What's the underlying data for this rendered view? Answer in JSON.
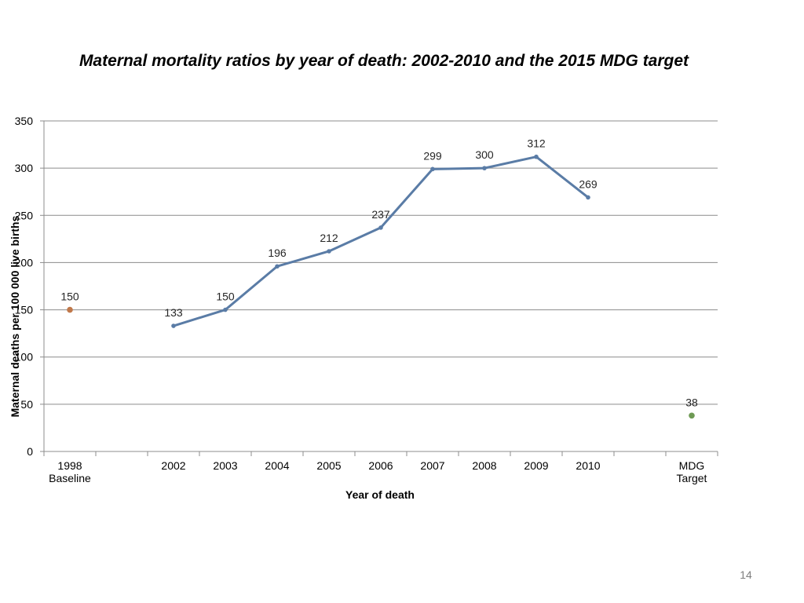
{
  "slide": {
    "title": "Maternal mortality ratios by year of death: 2002-2010 and the 2015 MDG target",
    "page_number": "14"
  },
  "chart_data": {
    "type": "line",
    "title": "",
    "xlabel": "Year of death",
    "ylabel": "Maternal deaths per 100 000 live births",
    "ylim": [
      0,
      350
    ],
    "ytick_step": 50,
    "yticks": [
      "0",
      "50",
      "100",
      "150",
      "200",
      "250",
      "300",
      "350"
    ],
    "grid": true,
    "legend": "none",
    "categories": [
      [
        "1998",
        "Baseline"
      ],
      [
        ""
      ],
      [
        "2002"
      ],
      [
        "2003"
      ],
      [
        "2004"
      ],
      [
        "2005"
      ],
      [
        "2006"
      ],
      [
        "2007"
      ],
      [
        "2008"
      ],
      [
        "2009"
      ],
      [
        "2010"
      ],
      [
        ""
      ],
      [
        "MDG",
        "Target"
      ]
    ],
    "series": [
      {
        "name": "",
        "kind": "point",
        "color": "#c0784a",
        "points": [
          {
            "x": 0,
            "y": 150,
            "label": "150"
          }
        ]
      },
      {
        "name": "",
        "kind": "line",
        "color": "#5a7ca6",
        "points": [
          {
            "x": 2,
            "y": 133,
            "label": "133"
          },
          {
            "x": 3,
            "y": 150,
            "label": "150"
          },
          {
            "x": 4,
            "y": 196,
            "label": "196"
          },
          {
            "x": 5,
            "y": 212,
            "label": "212"
          },
          {
            "x": 6,
            "y": 237,
            "label": "237"
          },
          {
            "x": 7,
            "y": 299,
            "label": "299"
          },
          {
            "x": 8,
            "y": 300,
            "label": "300"
          },
          {
            "x": 9,
            "y": 312,
            "label": "312"
          },
          {
            "x": 10,
            "y": 269,
            "label": "269"
          }
        ]
      },
      {
        "name": "",
        "kind": "point",
        "color": "#6e9a54",
        "points": [
          {
            "x": 12,
            "y": 38,
            "label": "38"
          }
        ]
      }
    ]
  }
}
